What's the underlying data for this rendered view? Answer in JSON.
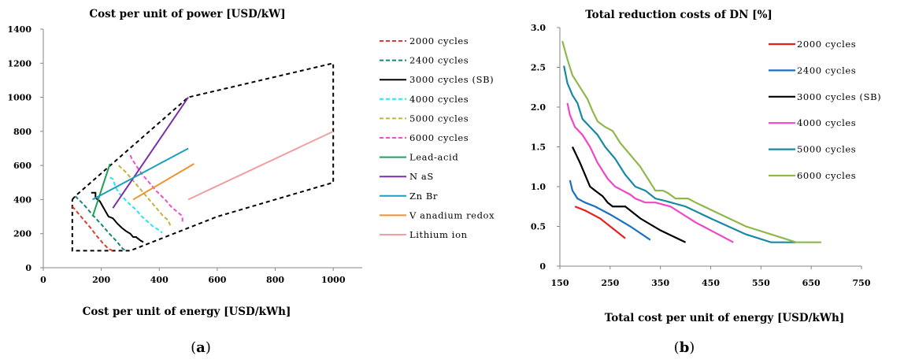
{
  "chart_data": [
    {
      "panel": "a",
      "type": "line",
      "title": "Cost per unit of  power [USD/kW]",
      "xlabel": "Cost per unit of energy [USD/kWh]",
      "ylabel": "",
      "xlim": [
        0,
        1100
      ],
      "ylim": [
        0,
        1400
      ],
      "xticks": [
        0,
        200,
        400,
        600,
        800,
        1000
      ],
      "yticks": [
        0,
        200,
        400,
        600,
        800,
        1000,
        1200,
        1400
      ],
      "legend_position": "right",
      "series": [
        {
          "name": "2000 cycles",
          "color": "#e03c31",
          "dash": "dashed",
          "x": [
            100,
            130,
            160,
            185,
            205,
            225,
            240
          ],
          "y": [
            360,
            300,
            240,
            185,
            145,
            110,
            100
          ]
        },
        {
          "name": "2400 cycles",
          "color": "#14857a",
          "dash": "dashed",
          "x": [
            110,
            140,
            170,
            200,
            225,
            250,
            275,
            285
          ],
          "y": [
            420,
            370,
            310,
            255,
            205,
            160,
            110,
            100
          ]
        },
        {
          "name": "3000 cycles (SB)",
          "color": "#000000",
          "dash": "solid",
          "x": [
            165,
            180,
            180,
            195,
            205,
            215,
            225,
            240,
            255,
            270,
            285,
            300,
            310,
            320,
            335,
            345
          ],
          "y": [
            440,
            440,
            410,
            390,
            360,
            330,
            300,
            290,
            260,
            235,
            215,
            200,
            180,
            180,
            160,
            150
          ]
        },
        {
          "name": "4000 cycles",
          "color": "#26e4f1",
          "dash": "dashed",
          "x": [
            230,
            240,
            250,
            265,
            285,
            300,
            320,
            340,
            360,
            380,
            400,
            410
          ],
          "y": [
            530,
            520,
            470,
            430,
            395,
            370,
            340,
            300,
            270,
            240,
            220,
            205
          ]
        },
        {
          "name": "5000 cycles",
          "color": "#c4b23c",
          "dash": "dashed",
          "x": [
            260,
            285,
            310,
            330,
            355,
            375,
            395,
            415,
            430,
            440
          ],
          "y": [
            600,
            560,
            510,
            470,
            420,
            380,
            340,
            300,
            280,
            240
          ]
        },
        {
          "name": "6000 cycles",
          "color": "#f04fd0",
          "dash": "dashed",
          "x": [
            300,
            305,
            320,
            340,
            365,
            390,
            420,
            440,
            460,
            475,
            480,
            480
          ],
          "y": [
            660,
            640,
            600,
            550,
            500,
            450,
            400,
            360,
            330,
            310,
            290,
            260
          ]
        },
        {
          "name": "Lead-acid",
          "color": "#21a05a",
          "dash": "solid",
          "x": [
            170,
            230
          ],
          "y": [
            300,
            610
          ]
        },
        {
          "name": "N aS",
          "color": "#7d30a6",
          "dash": "solid",
          "x": [
            240,
            500
          ],
          "y": [
            350,
            1000
          ]
        },
        {
          "name": "Zn Br",
          "color": "#1c9fbf",
          "dash": "solid",
          "x": [
            170,
            500
          ],
          "y": [
            400,
            700
          ]
        },
        {
          "name": "V anadium  redox",
          "color": "#f0922e",
          "dash": "solid",
          "x": [
            310,
            520
          ],
          "y": [
            400,
            610
          ]
        },
        {
          "name": "Lithium  ion",
          "color": "#f0a0a0",
          "dash": "solid",
          "x": [
            500,
            1000
          ],
          "y": [
            400,
            800
          ]
        }
      ],
      "envelope": {
        "color": "#000000",
        "dash": "dashed",
        "x": [
          100,
          110,
          500,
          1000,
          1000,
          600,
          300,
          300,
          100,
          100
        ],
        "y": [
          400,
          420,
          1000,
          1200,
          500,
          300,
          100,
          100,
          100,
          400
        ]
      }
    },
    {
      "panel": "b",
      "type": "line",
      "title": "Total reduction costs of DN [%]",
      "xlabel": "Total cost per unit of energy [USD/kWh]",
      "ylabel": "",
      "xlim": [
        150,
        750
      ],
      "ylim": [
        0,
        3.0
      ],
      "xticks": [
        150,
        250,
        350,
        450,
        550,
        650,
        750
      ],
      "yticks": [
        "0",
        "0.5",
        "1.0",
        "1.5",
        "2.0",
        "2.5",
        "3.0"
      ],
      "legend_position": "right",
      "series": [
        {
          "name": "2000 cycles",
          "color": "#e82020",
          "x": [
            180,
            200,
            230,
            260,
            280
          ],
          "y": [
            0.75,
            0.7,
            0.6,
            0.45,
            0.35
          ]
        },
        {
          "name": "2400 cycles",
          "color": "#1a6fc0",
          "x": [
            170,
            175,
            185,
            200,
            220,
            250,
            290,
            330
          ],
          "y": [
            1.08,
            0.95,
            0.85,
            0.8,
            0.75,
            0.65,
            0.5,
            0.33
          ]
        },
        {
          "name": "3000 cycles (SB)",
          "color": "#000000",
          "x": [
            175,
            190,
            200,
            210,
            220,
            235,
            245,
            255,
            265,
            280,
            290,
            310,
            350,
            400
          ],
          "y": [
            1.5,
            1.3,
            1.15,
            1.0,
            0.95,
            0.88,
            0.8,
            0.75,
            0.75,
            0.75,
            0.7,
            0.6,
            0.45,
            0.3
          ]
        },
        {
          "name": "4000 cycles",
          "color": "#f046c8",
          "x": [
            165,
            170,
            180,
            195,
            210,
            225,
            245,
            260,
            275,
            290,
            300,
            320,
            340,
            370,
            420,
            495
          ],
          "y": [
            2.05,
            1.9,
            1.75,
            1.65,
            1.5,
            1.3,
            1.1,
            1.0,
            0.95,
            0.9,
            0.85,
            0.8,
            0.8,
            0.75,
            0.55,
            0.3
          ]
        },
        {
          "name": "5000 cycles",
          "color": "#178aa3",
          "x": [
            158,
            165,
            175,
            185,
            195,
            210,
            225,
            240,
            260,
            280,
            300,
            320,
            340,
            360,
            400,
            450,
            520,
            570,
            620
          ],
          "y": [
            2.52,
            2.3,
            2.15,
            2.05,
            1.85,
            1.75,
            1.65,
            1.5,
            1.35,
            1.15,
            1.0,
            0.95,
            0.85,
            0.82,
            0.75,
            0.6,
            0.4,
            0.3,
            0.3
          ]
        },
        {
          "name": "6000 cycles",
          "color": "#8fb84a",
          "x": [
            155,
            165,
            175,
            185,
            195,
            205,
            215,
            225,
            240,
            255,
            270,
            290,
            310,
            330,
            340,
            355,
            365,
            380,
            395,
            405,
            420,
            470,
            520,
            570,
            620,
            670
          ],
          "y": [
            2.83,
            2.6,
            2.4,
            2.3,
            2.2,
            2.1,
            1.95,
            1.82,
            1.75,
            1.7,
            1.55,
            1.4,
            1.25,
            1.05,
            0.95,
            0.95,
            0.92,
            0.85,
            0.85,
            0.85,
            0.8,
            0.65,
            0.5,
            0.4,
            0.3,
            0.3
          ]
        }
      ]
    }
  ],
  "panel_labels": {
    "a": {
      "open": "(",
      "letter": "a",
      "close": ")"
    },
    "b": {
      "open": "(",
      "letter": "b",
      "close": ")"
    }
  }
}
